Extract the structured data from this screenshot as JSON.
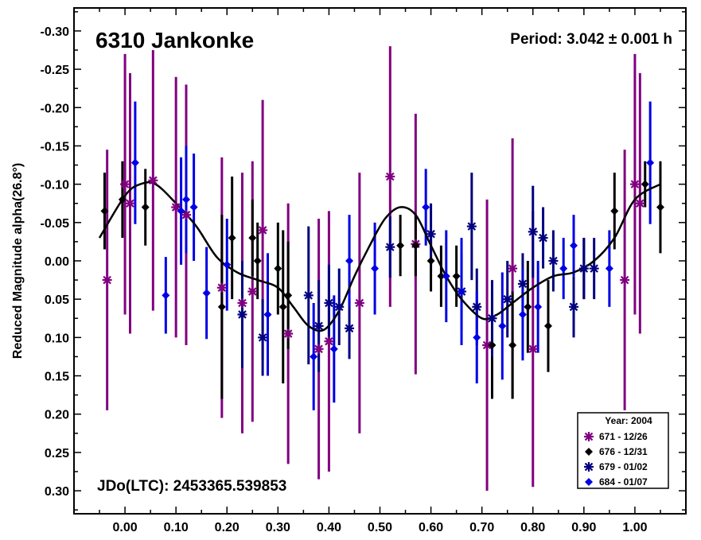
{
  "chart_data": {
    "type": "scatter",
    "title": "6310 Jankonke",
    "period_label": "Period: 3.042 ± 0.001 h",
    "jdo_label": "JDo(LTC): 2453365.539853",
    "ylabel": "Reduced Magnitude alpha(26.8°)",
    "xlabel": "",
    "xlim": [
      -0.1,
      1.1
    ],
    "ylim": [
      -0.33,
      0.33
    ],
    "y_inverted": true,
    "x_ticks": [
      "0.00",
      "0.10",
      "0.20",
      "0.30",
      "0.40",
      "0.50",
      "0.60",
      "0.70",
      "0.80",
      "0.90",
      "1.00"
    ],
    "x_tick_values": [
      0,
      0.1,
      0.2,
      0.3,
      0.4,
      0.5,
      0.6,
      0.7,
      0.8,
      0.9,
      1.0
    ],
    "y_ticks": [
      "-0.30",
      "-0.25",
      "-0.20",
      "-0.15",
      "-0.10",
      "-0.05",
      "0.00",
      "0.05",
      "0.10",
      "0.15",
      "0.20",
      "0.25",
      "0.30"
    ],
    "y_tick_values": [
      -0.3,
      -0.25,
      -0.2,
      -0.15,
      -0.1,
      -0.05,
      0,
      0.05,
      0.1,
      0.15,
      0.2,
      0.25,
      0.3
    ],
    "legend": {
      "title": "Year: 2004",
      "position": "bottom-right",
      "entries": [
        {
          "label": "671 - 12/26",
          "marker": "asterisk",
          "color": "#800080"
        },
        {
          "label": "676 - 12/31",
          "marker": "diamond",
          "color": "#000000"
        },
        {
          "label": "679 - 01/02",
          "marker": "asterisk",
          "color": "#000080"
        },
        {
          "label": "684 - 01/07",
          "marker": "diamond",
          "color": "#0000e6"
        }
      ]
    },
    "fit_curve": {
      "x": [
        -0.05,
        0.0,
        0.03,
        0.06,
        0.1,
        0.14,
        0.18,
        0.22,
        0.26,
        0.3,
        0.33,
        0.36,
        0.39,
        0.42,
        0.45,
        0.48,
        0.51,
        0.54,
        0.57,
        0.6,
        0.63,
        0.66,
        0.7,
        0.73,
        0.76,
        0.8,
        0.84,
        0.88,
        0.92,
        0.96,
        1.0,
        1.05
      ],
      "y": [
        -0.03,
        -0.085,
        -0.1,
        -0.1,
        -0.075,
        -0.045,
        -0.005,
        0.015,
        0.025,
        0.035,
        0.06,
        0.085,
        0.09,
        0.065,
        0.02,
        -0.02,
        -0.055,
        -0.07,
        -0.06,
        -0.02,
        0.02,
        0.05,
        0.075,
        0.07,
        0.055,
        0.035,
        0.02,
        0.015,
        0.0,
        -0.03,
        -0.08,
        -0.1
      ]
    },
    "series": [
      {
        "name": "671 - 12/26",
        "marker": "asterisk",
        "color": "#800080",
        "x": [
          -0.035,
          0.0,
          0.01,
          0.055,
          0.1,
          0.12,
          0.19,
          0.23,
          0.25,
          0.27,
          0.32,
          0.38,
          0.4,
          0.46,
          0.52,
          0.57,
          0.71,
          0.76,
          0.8,
          0.98,
          1.0,
          1.01
        ],
        "y": [
          0.025,
          -0.1,
          -0.075,
          -0.105,
          -0.07,
          -0.06,
          0.035,
          0.055,
          0.04,
          -0.04,
          0.095,
          0.115,
          0.105,
          0.055,
          -0.11,
          -0.022,
          0.11,
          0.01,
          0.115,
          0.025,
          -0.1,
          -0.075
        ],
        "err": [
          0.17,
          0.17,
          0.17,
          0.17,
          0.17,
          0.17,
          0.17,
          0.17,
          0.17,
          0.17,
          0.17,
          0.17,
          0.17,
          0.17,
          0.17,
          0.17,
          0.19,
          0.17,
          0.18,
          0.17,
          0.17,
          0.17
        ]
      },
      {
        "name": "676 - 12/31",
        "marker": "diamond",
        "color": "#000000",
        "x": [
          -0.04,
          -0.005,
          0.04,
          0.19,
          0.21,
          0.25,
          0.26,
          0.3,
          0.31,
          0.32,
          0.54,
          0.57,
          0.6,
          0.62,
          0.65,
          0.72,
          0.76,
          0.79,
          0.83,
          0.9,
          0.96,
          1.02,
          1.05
        ],
        "y": [
          -0.065,
          -0.08,
          -0.07,
          0.06,
          -0.03,
          -0.03,
          0.0,
          0.01,
          0.06,
          0.045,
          -0.02,
          -0.02,
          0.0,
          0.02,
          0.02,
          0.11,
          0.11,
          0.06,
          0.085,
          0.01,
          -0.065,
          -0.1,
          -0.07
        ],
        "err": [
          0.05,
          0.05,
          0.05,
          0.12,
          0.08,
          0.05,
          0.05,
          0.06,
          0.1,
          0.07,
          0.04,
          0.04,
          0.04,
          0.04,
          0.04,
          0.07,
          0.07,
          0.06,
          0.06,
          0.04,
          0.05,
          0.03,
          0.06
        ]
      },
      {
        "name": "679 - 01/02",
        "marker": "asterisk",
        "color": "#000080",
        "x": [
          0.23,
          0.27,
          0.36,
          0.38,
          0.4,
          0.42,
          0.44,
          0.52,
          0.6,
          0.66,
          0.68,
          0.69,
          0.72,
          0.75,
          0.78,
          0.8,
          0.82,
          0.84,
          0.88,
          0.9,
          0.92
        ],
        "y": [
          0.07,
          0.1,
          0.045,
          0.085,
          0.055,
          0.06,
          0.088,
          -0.018,
          -0.035,
          0.04,
          -0.045,
          0.06,
          0.075,
          0.05,
          0.03,
          -0.038,
          -0.03,
          0.0,
          0.06,
          0.01,
          0.01
        ],
        "err": [
          0.07,
          0.05,
          0.09,
          0.06,
          0.05,
          0.05,
          0.04,
          0.04,
          0.04,
          0.05,
          0.07,
          0.05,
          0.05,
          0.05,
          0.04,
          0.06,
          0.04,
          0.04,
          0.04,
          0.04,
          0.04
        ]
      },
      {
        "name": "684 - 01/07",
        "marker": "diamond",
        "color": "#0000e6",
        "x": [
          0.02,
          0.08,
          0.11,
          0.12,
          0.135,
          0.16,
          0.2,
          0.28,
          0.37,
          0.41,
          0.44,
          0.49,
          0.59,
          0.63,
          0.66,
          0.69,
          0.74,
          0.78,
          0.81,
          0.86,
          0.88,
          0.95,
          1.03
        ],
        "y": [
          -0.128,
          0.045,
          -0.065,
          -0.08,
          -0.07,
          0.042,
          0.005,
          0.07,
          0.125,
          0.115,
          0.0,
          0.01,
          -0.07,
          0.02,
          0.04,
          0.1,
          0.085,
          0.07,
          0.06,
          0.01,
          -0.02,
          0.01,
          -0.128
        ],
        "err": [
          0.08,
          0.05,
          0.07,
          0.07,
          0.07,
          0.06,
          0.06,
          0.08,
          0.07,
          0.07,
          0.06,
          0.06,
          0.05,
          0.06,
          0.07,
          0.06,
          0.07,
          0.06,
          0.06,
          0.04,
          0.04,
          0.05,
          0.08
        ]
      }
    ]
  }
}
